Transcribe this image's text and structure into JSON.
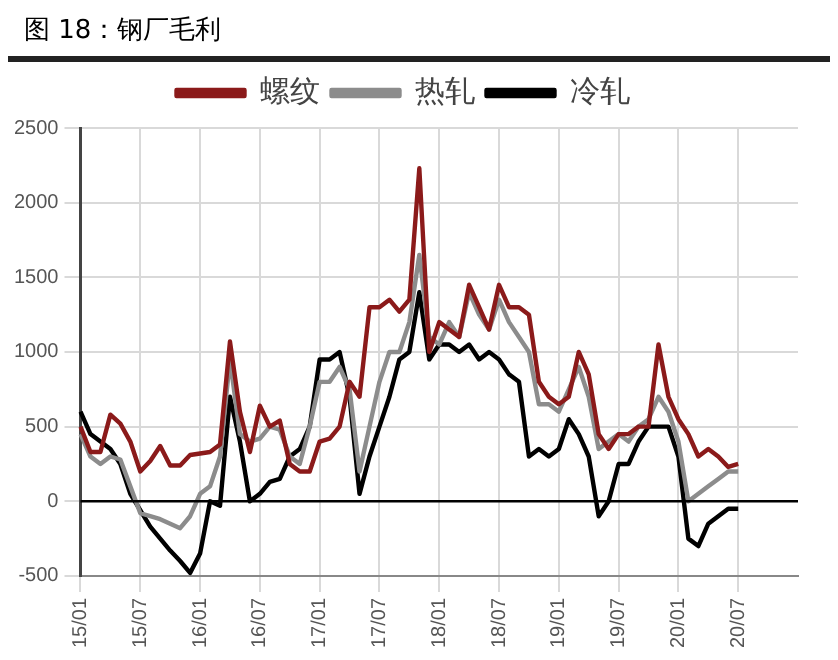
{
  "chart_data": {
    "type": "line",
    "title": "图 18：钢厂毛利",
    "categories": [
      "15/01",
      null,
      null,
      null,
      null,
      null,
      "15/07",
      null,
      null,
      null,
      null,
      null,
      "16/01",
      null,
      null,
      null,
      null,
      null,
      "16/07",
      null,
      null,
      null,
      null,
      null,
      "17/01",
      null,
      null,
      null,
      null,
      null,
      "17/07",
      null,
      null,
      null,
      null,
      null,
      "18/01",
      null,
      null,
      null,
      null,
      null,
      "18/07",
      null,
      null,
      null,
      null,
      null,
      "19/01",
      null,
      null,
      null,
      null,
      null,
      "19/07",
      null,
      null,
      null,
      null,
      null,
      "20/01",
      null,
      null,
      null,
      null,
      null,
      "20/07",
      null,
      null,
      null,
      null,
      null,
      null
    ],
    "series": [
      {
        "name": "螺纹",
        "color": "#8b1a1a",
        "values": [
          500,
          330,
          330,
          580,
          520,
          400,
          200,
          270,
          370,
          240,
          240,
          310,
          320,
          330,
          380,
          1070,
          600,
          330,
          640,
          500,
          540,
          250,
          200,
          200,
          400,
          420,
          500,
          800,
          700,
          1300,
          1300,
          1350,
          1270,
          1350,
          2230,
          1000,
          1200,
          1150,
          1100,
          1450,
          1300,
          1150,
          1450,
          1300,
          1300,
          1250,
          800,
          700,
          650,
          700,
          1000,
          850,
          450,
          350,
          450,
          450,
          500,
          500,
          1050,
          700,
          550,
          450,
          300,
          350,
          300,
          230,
          250,
          null,
          null,
          null,
          null,
          null,
          null
        ]
      },
      {
        "name": "热轧",
        "color": "#8c8c8c",
        "values": [
          450,
          300,
          250,
          300,
          280,
          100,
          -80,
          -100,
          -120,
          -150,
          -180,
          -100,
          50,
          100,
          300,
          950,
          450,
          400,
          420,
          500,
          480,
          300,
          250,
          500,
          800,
          800,
          900,
          750,
          200,
          500,
          800,
          1000,
          1000,
          1200,
          1650,
          1100,
          1050,
          1200,
          1100,
          1400,
          1250,
          1150,
          1350,
          1200,
          1100,
          1000,
          650,
          650,
          600,
          750,
          900,
          700,
          350,
          400,
          450,
          400,
          500,
          550,
          700,
          600,
          400,
          0,
          50,
          100,
          150,
          200,
          200,
          null,
          null,
          null,
          null,
          null,
          null
        ]
      },
      {
        "name": "冷轧",
        "color": "#000000",
        "values": [
          600,
          450,
          400,
          350,
          250,
          50,
          -60,
          -170,
          -250,
          -330,
          -400,
          -480,
          -350,
          0,
          -30,
          700,
          400,
          0,
          50,
          130,
          150,
          300,
          350,
          500,
          950,
          950,
          1000,
          700,
          50,
          300,
          500,
          700,
          950,
          1000,
          1400,
          950,
          1050,
          1050,
          1000,
          1050,
          950,
          1000,
          950,
          850,
          800,
          300,
          350,
          300,
          350,
          550,
          450,
          300,
          -100,
          0,
          250,
          250,
          400,
          500,
          500,
          500,
          300,
          -250,
          -300,
          -150,
          -100,
          -50,
          -50,
          null,
          null,
          null,
          null,
          null,
          null
        ]
      }
    ],
    "ylim": [
      -500,
      2500
    ],
    "yticks": [
      -500,
      0,
      500,
      1000,
      1500,
      2000,
      2500
    ],
    "ref_lines": [
      {
        "axis": "y",
        "value": 0,
        "color": "#000000"
      }
    ],
    "grid": true,
    "legend": "top",
    "marker": "none",
    "line_style": "solid"
  }
}
